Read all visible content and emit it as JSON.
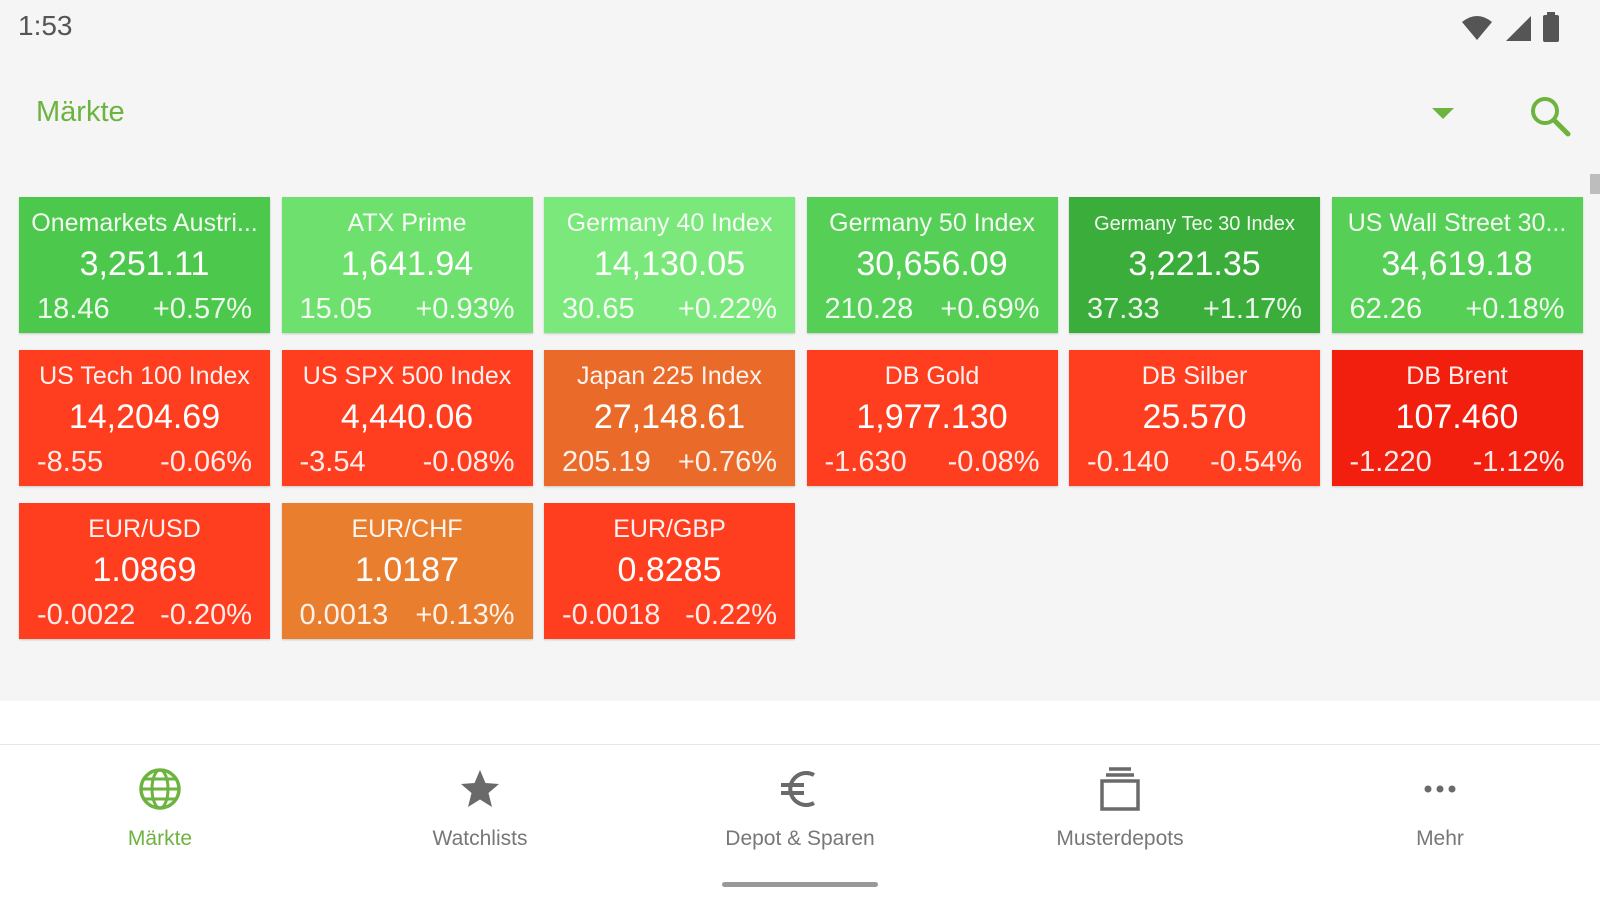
{
  "status_bar": {
    "time": "1:53"
  },
  "header": {
    "title": "Märkte"
  },
  "colors": {
    "accent": "#6db33f",
    "up_strong": "#3bb33b",
    "up": "#4cc94c",
    "up_light": "#6ee06e",
    "down": "#ff3d1f",
    "down_strong": "#f21f0f",
    "down_light": "#ea6a2a",
    "neutral_orange": "#e97e2e"
  },
  "tiles": [
    {
      "name": "Onemarkets Austri...",
      "value": "3,251.11",
      "change": "18.46",
      "pct": "+0.57%",
      "color": "#4cc94c"
    },
    {
      "name": "ATX Prime",
      "value": "1,641.94",
      "change": "15.05",
      "pct": "+0.93%",
      "color": "#6ee06e"
    },
    {
      "name": "Germany 40 Index",
      "value": "14,130.05",
      "change": "30.65",
      "pct": "+0.22%",
      "color": "#7ae87a"
    },
    {
      "name": "Germany 50 Index",
      "value": "30,656.09",
      "change": "210.28",
      "pct": "+0.69%",
      "color": "#55cf55"
    },
    {
      "name": "Germany Tec 30 Index",
      "value": "3,221.35",
      "change": "37.33",
      "pct": "+1.17%",
      "color": "#3aad3a",
      "small": true
    },
    {
      "name": "US Wall Street 30...",
      "value": "34,619.18",
      "change": "62.26",
      "pct": "+0.18%",
      "color": "#55cf55"
    },
    {
      "name": "US Tech 100 Index",
      "value": "14,204.69",
      "change": "-8.55",
      "pct": "-0.06%",
      "color": "#ff3d1f"
    },
    {
      "name": "US SPX 500 Index",
      "value": "4,440.06",
      "change": "-3.54",
      "pct": "-0.08%",
      "color": "#ff3d1f"
    },
    {
      "name": "Japan 225 Index",
      "value": "27,148.61",
      "change": "205.19",
      "pct": "+0.76%",
      "color": "#ea6a2a"
    },
    {
      "name": "DB Gold",
      "value": "1,977.130",
      "change": "-1.630",
      "pct": "-0.08%",
      "color": "#ff3d1f"
    },
    {
      "name": "DB Silber",
      "value": "25.570",
      "change": "-0.140",
      "pct": "-0.54%",
      "color": "#ff3d1f"
    },
    {
      "name": "DB Brent",
      "value": "107.460",
      "change": "-1.220",
      "pct": "-1.12%",
      "color": "#f21f0f"
    },
    {
      "name": "EUR/USD",
      "value": "1.0869",
      "change": "-0.0022",
      "pct": "-0.20%",
      "color": "#ff3d1f"
    },
    {
      "name": "EUR/CHF",
      "value": "1.0187",
      "change": "0.0013",
      "pct": "+0.13%",
      "color": "#e97e2e"
    },
    {
      "name": "EUR/GBP",
      "value": "0.8285",
      "change": "-0.0018",
      "pct": "-0.22%",
      "color": "#ff3d1f"
    }
  ],
  "bottom_nav": [
    {
      "label": "Märkte",
      "icon": "globe-icon",
      "active": true
    },
    {
      "label": "Watchlists",
      "icon": "star-icon",
      "active": false
    },
    {
      "label": "Depot & Sparen",
      "icon": "euro-icon",
      "active": false
    },
    {
      "label": "Musterdepots",
      "icon": "stack-icon",
      "active": false
    },
    {
      "label": "Mehr",
      "icon": "more-icon",
      "active": false
    }
  ]
}
